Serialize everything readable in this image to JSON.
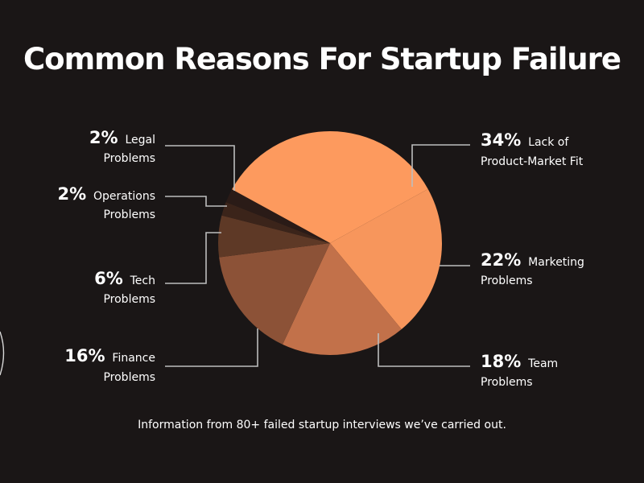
{
  "chart_data": {
    "type": "pie",
    "title": "Common Reasons For Startup Failure",
    "slices": [
      {
        "percent_label": "34%",
        "label_line1": "Lack of",
        "label_line2": "Product-Market Fit",
        "value": 34,
        "color": "#fd9a5e"
      },
      {
        "percent_label": "22%",
        "label_line1": "Marketing",
        "label_line2": "Problems",
        "value": 22,
        "color": "#f7965c"
      },
      {
        "percent_label": "18%",
        "label_line1": "Team",
        "label_line2": "Problems",
        "value": 18,
        "color": "#c2714a"
      },
      {
        "percent_label": "16%",
        "label_line1": "Finance",
        "label_line2": "Problems",
        "value": 16,
        "color": "#8c5237"
      },
      {
        "percent_label": "6%",
        "label_line1": "Tech",
        "label_line2": "Problems",
        "value": 6,
        "color": "#5e3926"
      },
      {
        "percent_label": "2%",
        "label_line1": "Operations",
        "label_line2": "Problems",
        "value": 2,
        "color": "#3b241a"
      },
      {
        "percent_label": "2%",
        "label_line1": "Legal",
        "label_line2": "Problems",
        "value": 2,
        "color": "#2a1b17"
      }
    ],
    "footnote": "Information from 80+ failed startup interviews we’ve carried out."
  }
}
